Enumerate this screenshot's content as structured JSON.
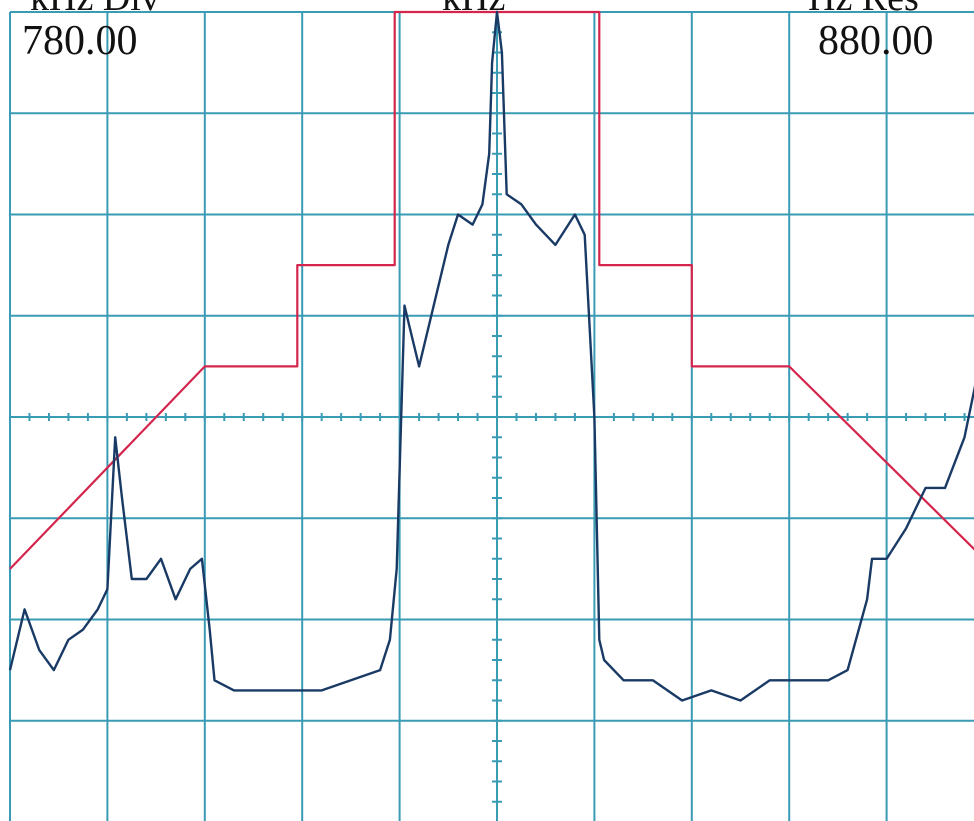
{
  "header": {
    "left_unit": "kHz Div",
    "center_unit": "kHz",
    "right_unit": "Hz Res",
    "left_value": "780.00",
    "right_value": "880.00"
  },
  "colors": {
    "grid": "#3a9bb5",
    "trace": "#1a3a66",
    "mask": "#d4264c",
    "background": "#ffffff"
  },
  "chart_data": {
    "type": "line",
    "title": "",
    "xlabel": "",
    "ylabel": "",
    "xlim": [
      0,
      10
    ],
    "ylim": [
      -8,
      0
    ],
    "x_divisions": 10,
    "y_divisions": 8,
    "minor_ticks_per_division": 5,
    "grid": true,
    "legend": "none",
    "series": [
      {
        "role": "emission-mask",
        "color": "#d4264c",
        "x": [
          0,
          2.0,
          2.95,
          2.95,
          3.95,
          3.95,
          6.05,
          6.05,
          7.0,
          7.0,
          8.0,
          10.0
        ],
        "y": [
          -5.5,
          -3.5,
          -3.5,
          -2.5,
          -2.5,
          0.0,
          0.0,
          -2.5,
          -2.5,
          -3.5,
          -3.5,
          -5.4
        ]
      },
      {
        "role": "spectrum-trace",
        "color": "#1a3a66",
        "x": [
          0.0,
          0.15,
          0.3,
          0.45,
          0.6,
          0.75,
          0.9,
          1.0,
          1.08,
          1.15,
          1.25,
          1.4,
          1.55,
          1.7,
          1.85,
          1.97,
          2.05,
          2.1,
          2.3,
          2.6,
          2.9,
          3.2,
          3.5,
          3.8,
          3.9,
          3.97,
          4.05,
          4.1,
          4.2,
          4.35,
          4.5,
          4.6,
          4.75,
          4.85,
          4.92,
          4.95,
          5.0,
          5.05,
          5.1,
          5.25,
          5.4,
          5.6,
          5.8,
          5.9,
          6.0,
          6.05,
          6.1,
          6.3,
          6.6,
          6.9,
          7.2,
          7.5,
          7.8,
          8.1,
          8.4,
          8.6,
          8.8,
          8.85,
          9.0,
          9.2,
          9.4,
          9.6,
          9.8,
          9.95,
          10.0
        ],
        "y": [
          -6.5,
          -5.9,
          -6.3,
          -6.5,
          -6.2,
          -6.1,
          -5.9,
          -5.7,
          -4.2,
          -4.8,
          -5.6,
          -5.6,
          -5.4,
          -5.8,
          -5.5,
          -5.4,
          -6.1,
          -6.6,
          -6.7,
          -6.7,
          -6.7,
          -6.7,
          -6.6,
          -6.5,
          -6.2,
          -5.5,
          -2.9,
          -3.1,
          -3.5,
          -2.9,
          -2.3,
          -2.0,
          -2.1,
          -1.9,
          -1.4,
          -0.5,
          0.0,
          -0.4,
          -1.8,
          -1.9,
          -2.1,
          -2.3,
          -2.0,
          -2.2,
          -4.0,
          -6.2,
          -6.4,
          -6.6,
          -6.6,
          -6.8,
          -6.7,
          -6.8,
          -6.6,
          -6.6,
          -6.6,
          -6.5,
          -5.8,
          -5.4,
          -5.4,
          -5.1,
          -4.7,
          -4.7,
          -4.2,
          -3.5,
          -3.0
        ]
      }
    ]
  }
}
